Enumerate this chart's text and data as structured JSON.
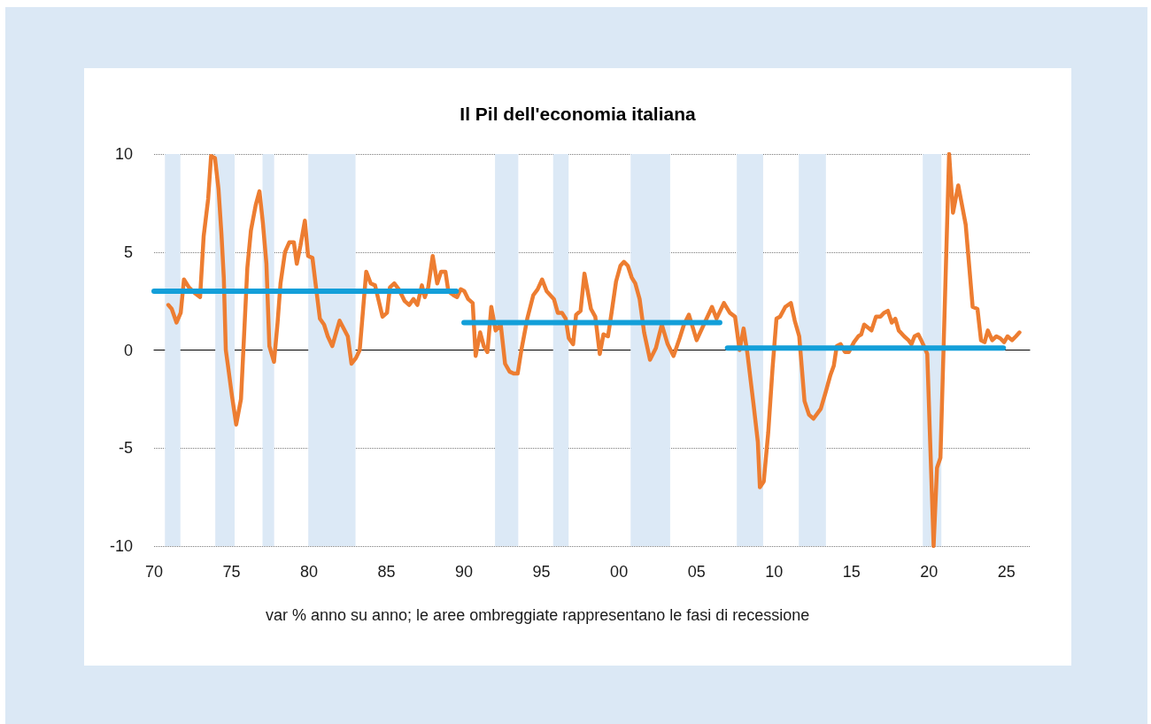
{
  "chart_data": {
    "type": "line",
    "title": "Il Pil dell'economia italiana",
    "annotations": [
      "var % anno su anno; le aree ombreggiate rappresentano le fasi di recessione"
    ],
    "xlim": [
      1970,
      2026.5
    ],
    "xticks": [
      {
        "value": 1970,
        "label": "70"
      },
      {
        "value": 1975,
        "label": "75"
      },
      {
        "value": 1980,
        "label": "80"
      },
      {
        "value": 1985,
        "label": "85"
      },
      {
        "value": 1990,
        "label": "90"
      },
      {
        "value": 1995,
        "label": "95"
      },
      {
        "value": 2000,
        "label": "00"
      },
      {
        "value": 2005,
        "label": "05"
      },
      {
        "value": 2010,
        "label": "10"
      },
      {
        "value": 2015,
        "label": "15"
      },
      {
        "value": 2020,
        "label": "20"
      },
      {
        "value": 2025,
        "label": "25"
      }
    ],
    "ylim": [
      -10,
      10
    ],
    "yticks": [
      -10,
      -5,
      0,
      5,
      10
    ],
    "grid": "y",
    "marker": "none",
    "line_style": "solid",
    "series": [
      {
        "color": "#ed7d31",
        "x": [
          1970.92,
          1971.14,
          1971.45,
          1971.72,
          1971.93,
          1972.25,
          1972.63,
          1972.97,
          1973.2,
          1973.49,
          1973.68,
          1973.93,
          1974.16,
          1974.35,
          1974.5,
          1974.63,
          1974.77,
          1975.02,
          1975.3,
          1975.61,
          1976.02,
          1976.25,
          1976.56,
          1976.8,
          1977.02,
          1977.25,
          1977.44,
          1977.74,
          1977.97,
          1978.16,
          1978.45,
          1978.73,
          1979.02,
          1979.21,
          1979.44,
          1979.73,
          1979.94,
          1980.22,
          1980.45,
          1980.7,
          1980.97,
          1981.21,
          1981.5,
          1981.97,
          1982.5,
          1982.74,
          1983.03,
          1983.27,
          1983.69,
          1983.98,
          1984.26,
          1984.74,
          1985.03,
          1985.22,
          1985.5,
          1985.79,
          1986.17,
          1986.46,
          1986.74,
          1986.99,
          1987.28,
          1987.47,
          1987.69,
          1987.98,
          1988.27,
          1988.52,
          1988.8,
          1988.99,
          1989.32,
          1989.55,
          1989.79,
          1990.02,
          1990.27,
          1990.56,
          1990.75,
          1991.04,
          1991.28,
          1991.51,
          1991.76,
          1992.04,
          1992.37,
          1992.65,
          1992.94,
          1993.2,
          1993.46,
          1993.7,
          1994.08,
          1994.47,
          1994.75,
          1995.04,
          1995.33,
          1995.8,
          1996.05,
          1996.32,
          1996.56,
          1996.76,
          1997.04,
          1997.23,
          1997.52,
          1997.77,
          1998.19,
          1998.47,
          1998.76,
          1999.0,
          1999.29,
          1999.52,
          1999.81,
          2000.09,
          2000.32,
          2000.57,
          2000.82,
          2001.05,
          2001.33,
          2001.62,
          2002.0,
          2002.38,
          2002.76,
          2003.14,
          2003.52,
          2003.91,
          2004.19,
          2004.51,
          2005.01,
          2005.53,
          2006.0,
          2006.29,
          2006.77,
          2007.15,
          2007.49,
          2007.78,
          2008.04,
          2008.29,
          2008.67,
          2008.96,
          2009.09,
          2009.34,
          2009.63,
          2009.91,
          2010.16,
          2010.39,
          2010.73,
          2011.09,
          2011.34,
          2011.63,
          2011.97,
          2012.26,
          2012.55,
          2013.02,
          2013.35,
          2013.63,
          2013.86,
          2014.05,
          2014.3,
          2014.58,
          2014.83,
          2015.16,
          2015.44,
          2015.63,
          2015.82,
          2016.29,
          2016.58,
          2016.87,
          2017.1,
          2017.35,
          2017.6,
          2017.83,
          2018.05,
          2018.4,
          2018.68,
          2018.87,
          2019.07,
          2019.31,
          2019.5,
          2019.73,
          2019.89,
          2020.3,
          2020.52,
          2020.74,
          2021.3,
          2021.55,
          2021.89,
          2022.37,
          2022.82,
          2023.13,
          2023.36,
          2023.59,
          2023.8,
          2024.08,
          2024.35,
          2024.6,
          2024.85,
          2025.07,
          2025.36,
          2025.61,
          2025.84
        ],
        "values": [
          2.3,
          2.1,
          1.4,
          1.9,
          3.6,
          3.2,
          2.9,
          2.7,
          5.8,
          7.7,
          9.9,
          9.8,
          8.2,
          5.9,
          3.7,
          0.0,
          -0.8,
          -2.3,
          -3.8,
          -2.5,
          4.2,
          6.1,
          7.4,
          8.1,
          6.5,
          4.4,
          0.2,
          -0.6,
          1.4,
          3.4,
          5.0,
          5.5,
          5.5,
          4.4,
          5.3,
          6.6,
          4.8,
          4.7,
          3.2,
          1.6,
          1.3,
          0.7,
          0.2,
          1.5,
          0.7,
          -0.7,
          -0.4,
          0.0,
          4.0,
          3.4,
          3.3,
          1.7,
          1.9,
          3.2,
          3.4,
          3.1,
          2.5,
          2.3,
          2.6,
          2.3,
          3.3,
          2.7,
          3.2,
          4.8,
          3.4,
          4.0,
          4.0,
          3.0,
          2.8,
          2.7,
          3.1,
          3.0,
          2.6,
          2.4,
          -0.3,
          0.9,
          0.2,
          -0.1,
          2.2,
          1.0,
          1.3,
          -0.7,
          -1.1,
          -1.2,
          -1.2,
          0.0,
          1.6,
          2.8,
          3.1,
          3.6,
          3.0,
          2.6,
          1.9,
          1.9,
          1.6,
          0.6,
          0.3,
          1.8,
          2.0,
          3.9,
          2.1,
          1.7,
          -0.2,
          0.8,
          0.7,
          1.9,
          3.5,
          4.3,
          4.5,
          4.3,
          3.7,
          3.4,
          2.6,
          0.9,
          -0.5,
          0.1,
          1.3,
          0.3,
          -0.3,
          0.6,
          1.3,
          1.8,
          0.5,
          1.4,
          2.2,
          1.6,
          2.4,
          1.9,
          1.7,
          0.0,
          1.1,
          -0.2,
          -2.7,
          -4.7,
          -7.0,
          -6.7,
          -4.2,
          -0.9,
          1.6,
          1.7,
          2.2,
          2.4,
          1.5,
          0.7,
          -2.6,
          -3.3,
          -3.5,
          -3.0,
          -2.1,
          -1.3,
          -0.8,
          0.2,
          0.3,
          -0.1,
          -0.1,
          0.4,
          0.7,
          0.8,
          1.3,
          1.0,
          1.7,
          1.7,
          1.9,
          2.0,
          1.4,
          1.6,
          1.0,
          0.7,
          0.5,
          0.3,
          0.7,
          0.8,
          0.5,
          0.1,
          -0.2,
          -10,
          -6.0,
          -5.5,
          10,
          7.0,
          8.4,
          6.4,
          2.2,
          2.1,
          0.5,
          0.4,
          1.0,
          0.5,
          0.7,
          0.6,
          0.4,
          0.7,
          0.5,
          0.7,
          0.9
        ]
      },
      {
        "color": "#139fd9",
        "x": [
          1970,
          1989.5
        ],
        "values": [
          3.0,
          3.0
        ]
      },
      {
        "color": "#139fd9",
        "x": [
          1990,
          2006.5
        ],
        "values": [
          1.4,
          1.4
        ]
      },
      {
        "color": "#139fd9",
        "x": [
          2007,
          2024.8
        ],
        "values": [
          0.1,
          0.1
        ]
      }
    ],
    "bands": [
      {
        "axis": "x",
        "from": 1970.7,
        "to": 1971.7,
        "color": "#dce9f6"
      },
      {
        "axis": "x",
        "from": 1973.95,
        "to": 1975.2,
        "color": "#dce9f6"
      },
      {
        "axis": "x",
        "from": 1977.0,
        "to": 1977.75,
        "color": "#dce9f6"
      },
      {
        "axis": "x",
        "from": 1979.95,
        "to": 1983.0,
        "color": "#dce9f6"
      },
      {
        "axis": "x",
        "from": 1992.0,
        "to": 1993.5,
        "color": "#dce9f6"
      },
      {
        "axis": "x",
        "from": 1995.75,
        "to": 1996.75,
        "color": "#dce9f6"
      },
      {
        "axis": "x",
        "from": 2000.75,
        "to": 2003.3,
        "color": "#dce9f6"
      },
      {
        "axis": "x",
        "from": 2007.6,
        "to": 2009.3,
        "color": "#dce9f6"
      },
      {
        "axis": "x",
        "from": 2011.6,
        "to": 2013.35,
        "color": "#dce9f6"
      },
      {
        "axis": "x",
        "from": 2019.6,
        "to": 2020.8,
        "color": "#dce9f6"
      }
    ]
  }
}
